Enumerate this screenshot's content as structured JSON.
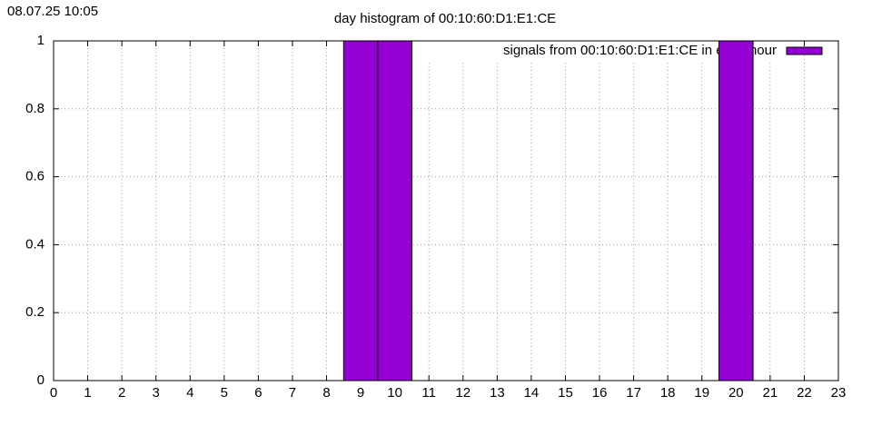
{
  "chart_data": {
    "type": "bar",
    "timestamp": "08.07.25 10:05",
    "title": "day histogram of 00:10:60:D1:E1:CE",
    "x": [
      0,
      1,
      2,
      3,
      4,
      5,
      6,
      7,
      8,
      9,
      10,
      11,
      12,
      13,
      14,
      15,
      16,
      17,
      18,
      19,
      20,
      21,
      22,
      23
    ],
    "series": [
      {
        "name": "signals from 00:10:60:D1:E1:CE in each hour",
        "color": "#9400d3",
        "values": [
          0,
          0,
          0,
          0,
          0,
          0,
          0,
          0,
          0,
          1,
          1,
          0,
          0,
          0,
          0,
          0,
          0,
          0,
          0,
          0,
          1,
          0,
          0,
          0
        ]
      }
    ],
    "xlim": [
      0,
      23
    ],
    "xticks": [
      0,
      1,
      2,
      3,
      4,
      5,
      6,
      7,
      8,
      9,
      10,
      11,
      12,
      13,
      14,
      15,
      16,
      17,
      18,
      19,
      20,
      21,
      22,
      23
    ],
    "ylim": [
      0,
      1
    ],
    "yticks": [
      0,
      0.2,
      0.4,
      0.6,
      0.8,
      1
    ],
    "grid": true,
    "legend": "top-right"
  }
}
